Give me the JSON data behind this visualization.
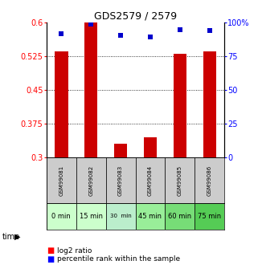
{
  "title": "GDS2579 / 2579",
  "samples": [
    "GSM99081",
    "GSM99082",
    "GSM99083",
    "GSM99084",
    "GSM99085",
    "GSM99086"
  ],
  "time_labels": [
    "0 min",
    "15 min",
    "30  min",
    "45 min",
    "60 min",
    "75 min"
  ],
  "time_colors": [
    "#ccffcc",
    "#ccffcc",
    "#bbeecc",
    "#99ee99",
    "#77dd77",
    "#55cc55"
  ],
  "log2_values": [
    0.535,
    0.6,
    0.33,
    0.345,
    0.53,
    0.535
  ],
  "percentile_values": [
    0.575,
    0.595,
    0.57,
    0.567,
    0.583,
    0.582
  ],
  "bar_color": "#cc0000",
  "dot_color": "#0000cc",
  "ylim_left": [
    0.3,
    0.6
  ],
  "yticks_left": [
    0.3,
    0.375,
    0.45,
    0.525,
    0.6
  ],
  "yticks_right": [
    0,
    25,
    50,
    75,
    100
  ],
  "sample_bg": "#cccccc",
  "x_positions": [
    0,
    1,
    2,
    3,
    4,
    5
  ]
}
